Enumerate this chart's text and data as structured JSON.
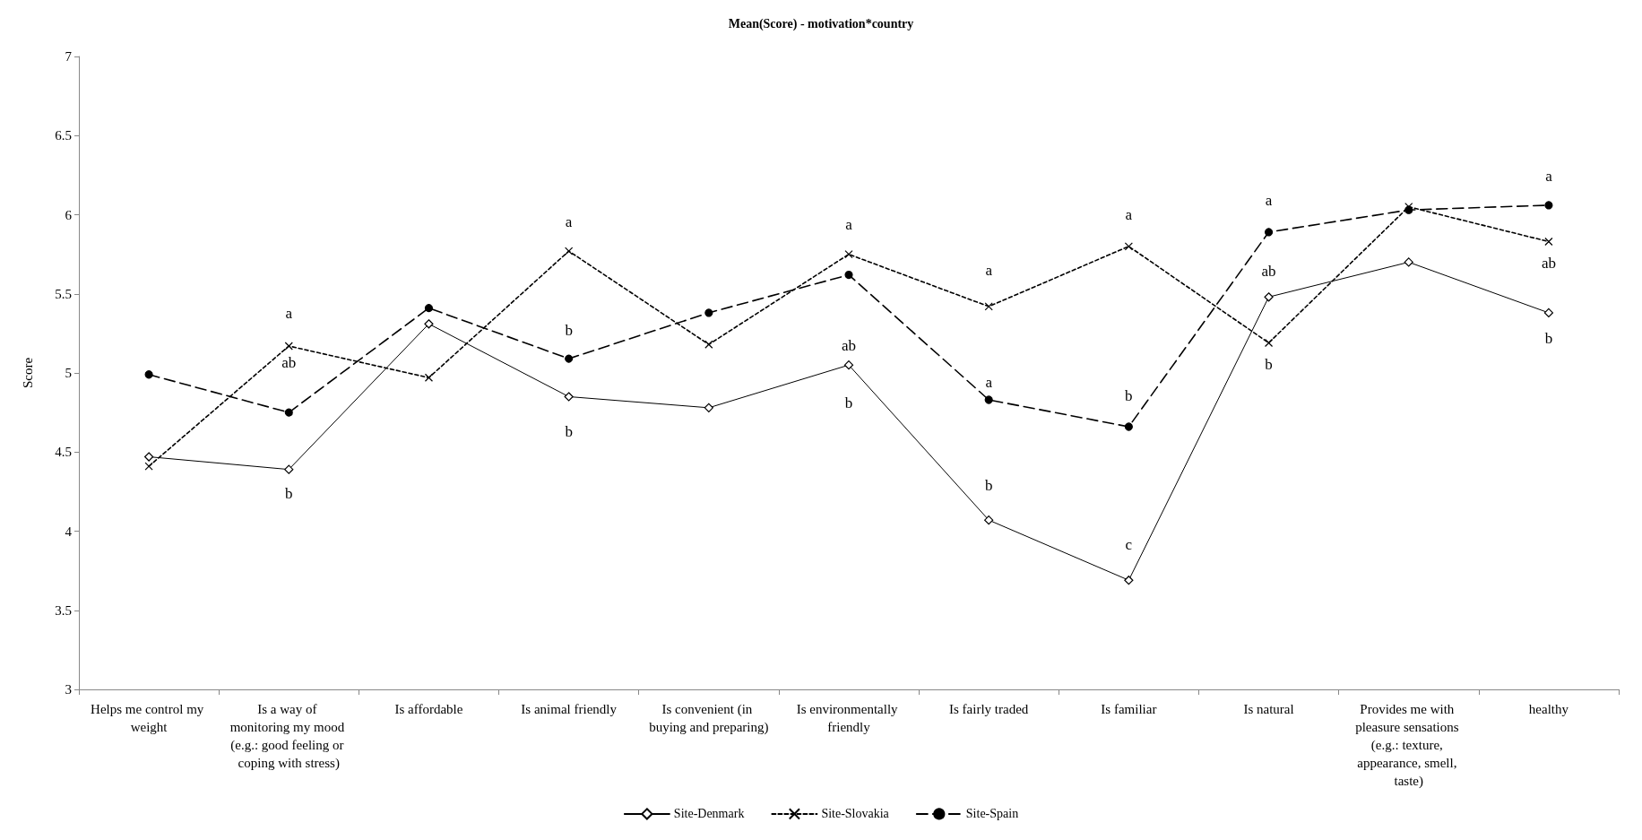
{
  "chart_data": {
    "type": "line",
    "title": "Mean(Score) - motivation*country",
    "ylabel": "Score",
    "categories": [
      "Helps me control my weight",
      "Is a way of monitoring my mood (e.g.: good feeling or coping with stress)",
      "Is affordable",
      "Is animal friendly",
      "Is convenient (in buying and preparing)",
      "Is environmentally friendly",
      "Is fairly traded",
      "Is familiar",
      "Is natural",
      "Provides me with pleasure sensations (e.g.: texture, appearance, smell, taste)",
      "healthy"
    ],
    "series": [
      {
        "name": "Site-Denmark",
        "color": "#000000",
        "marker": "diamond",
        "line_style": "solid",
        "values": [
          4.47,
          4.39,
          5.31,
          4.85,
          4.78,
          5.05,
          4.07,
          3.69,
          5.48,
          5.7,
          5.38
        ]
      },
      {
        "name": "Site-Slovakia",
        "color": "#000000",
        "marker": "cross",
        "line_style": "dotted",
        "values": [
          4.41,
          5.17,
          4.97,
          5.77,
          5.18,
          5.75,
          5.42,
          5.8,
          5.19,
          6.05,
          5.83
        ]
      },
      {
        "name": "Site-Spain",
        "color": "#000000",
        "marker": "circle",
        "line_style": "dashed",
        "values": [
          4.99,
          4.75,
          5.41,
          5.09,
          5.38,
          5.62,
          4.83,
          4.66,
          5.89,
          6.03,
          6.06
        ]
      }
    ],
    "ylim": [
      3,
      7
    ],
    "yticks": [
      3,
      3.5,
      4,
      4.5,
      5,
      5.5,
      6,
      6.5,
      7
    ],
    "grid": false,
    "legend": "bottom",
    "annotations": [
      {
        "text": "a",
        "x": "Is a way of monitoring my mood (e.g.: good feeling or coping with stress)",
        "y": 5.17
      },
      {
        "text": "ab",
        "x": "Is a way of monitoring my mood (e.g.: good feeling or coping with stress)",
        "y": 4.75
      },
      {
        "text": "b",
        "x": "Is a way of monitoring my mood (e.g.: good feeling or coping with stress)",
        "y": 4.39
      },
      {
        "text": "a",
        "x": "Is animal friendly",
        "y": 5.77
      },
      {
        "text": "b",
        "x": "Is animal friendly",
        "y": 5.09
      },
      {
        "text": "b",
        "x": "Is animal friendly",
        "y": 4.85
      },
      {
        "text": "a",
        "x": "Is environmentally friendly",
        "y": 5.75
      },
      {
        "text": "ab",
        "x": "Is environmentally friendly",
        "y": 5.05
      },
      {
        "text": "b",
        "x": "Is environmentally friendly",
        "y": 5.05
      },
      {
        "text": "a",
        "x": "Is fairly traded",
        "y": 5.42
      },
      {
        "text": "a",
        "x": "Is fairly traded",
        "y": 4.83
      },
      {
        "text": "b",
        "x": "Is fairly traded",
        "y": 4.07
      },
      {
        "text": "a",
        "x": "Is familiar",
        "y": 5.8
      },
      {
        "text": "b",
        "x": "Is familiar",
        "y": 4.66
      },
      {
        "text": "c",
        "x": "Is familiar",
        "y": 3.69
      },
      {
        "text": "a",
        "x": "Is natural",
        "y": 5.89
      },
      {
        "text": "ab",
        "x": "Is natural",
        "y": 5.48
      },
      {
        "text": "b",
        "x": "Is natural",
        "y": 5.19
      },
      {
        "text": "a",
        "x": "healthy",
        "y": 6.06
      },
      {
        "text": "ab",
        "x": "healthy",
        "y": 5.83
      },
      {
        "text": "b",
        "x": "healthy",
        "y": 5.38
      }
    ]
  }
}
